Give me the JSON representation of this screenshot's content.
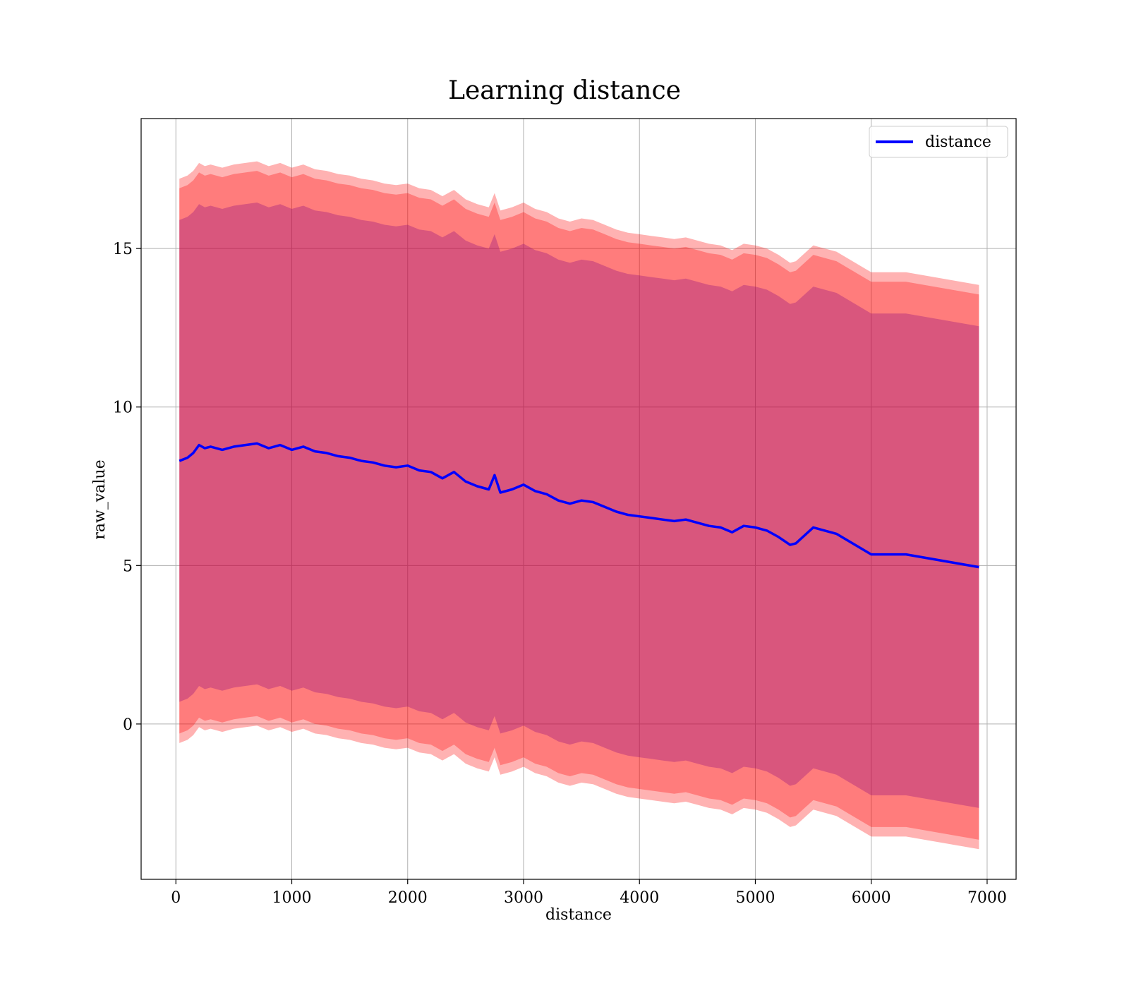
{
  "chart_data": {
    "type": "line",
    "title": "Learning distance",
    "xlabel": "distance",
    "ylabel": "raw_value",
    "xlim": [
      -300,
      7250
    ],
    "ylim": [
      -4.9,
      19.1
    ],
    "xticks": [
      0,
      1000,
      2000,
      3000,
      4000,
      5000,
      6000,
      7000
    ],
    "yticks": [
      0,
      5,
      10,
      15
    ],
    "grid": true,
    "legend": {
      "placement": "top-right",
      "entries": [
        "distance"
      ]
    },
    "colors": {
      "line": "#0000ff",
      "band_outer": "#ff0000",
      "band_inner": "#800080",
      "grid": "#b0b0b0"
    },
    "x": [
      30,
      100,
      150,
      200,
      250,
      300,
      400,
      500,
      600,
      700,
      800,
      900,
      1000,
      1100,
      1200,
      1300,
      1400,
      1500,
      1600,
      1700,
      1800,
      1900,
      2000,
      2100,
      2200,
      2300,
      2400,
      2500,
      2600,
      2700,
      2750,
      2800,
      2900,
      3000,
      3100,
      3200,
      3300,
      3400,
      3500,
      3600,
      3700,
      3800,
      3900,
      4000,
      4100,
      4200,
      4300,
      4400,
      4500,
      4600,
      4700,
      4800,
      4900,
      5000,
      5100,
      5200,
      5300,
      5350,
      5500,
      5700,
      6000,
      6300,
      6930
    ],
    "series": [
      {
        "name": "distance",
        "values": [
          8.3,
          8.4,
          8.55,
          8.8,
          8.7,
          8.75,
          8.65,
          8.75,
          8.8,
          8.85,
          8.7,
          8.8,
          8.65,
          8.75,
          8.6,
          8.55,
          8.45,
          8.4,
          8.3,
          8.25,
          8.15,
          8.1,
          8.15,
          8.0,
          7.95,
          7.75,
          7.95,
          7.65,
          7.5,
          7.4,
          7.85,
          7.3,
          7.4,
          7.55,
          7.35,
          7.25,
          7.05,
          6.95,
          7.05,
          7.0,
          6.85,
          6.7,
          6.6,
          6.55,
          6.5,
          6.45,
          6.4,
          6.45,
          6.35,
          6.25,
          6.2,
          6.05,
          6.25,
          6.2,
          6.1,
          5.9,
          5.65,
          5.7,
          6.2,
          6.0,
          5.35,
          5.35,
          4.95
        ]
      }
    ],
    "bands": [
      {
        "name": "outer",
        "offset": 8.9
      },
      {
        "name": "middle",
        "offset": 8.6
      },
      {
        "name": "inner",
        "offset": 7.6
      }
    ]
  }
}
